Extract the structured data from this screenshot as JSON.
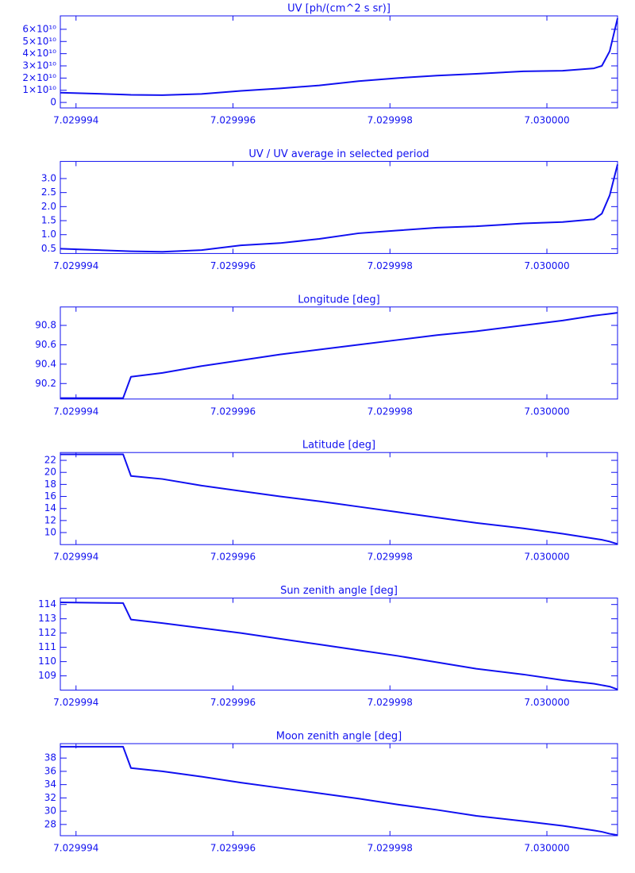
{
  "chart_data": [
    {
      "type": "line",
      "title": "UV [ph/(cm^2 s sr)]",
      "color": "#1010f0",
      "x": [
        7.0299938,
        7.0299946,
        7.0299947,
        7.0299951,
        7.0299956,
        7.0299961,
        7.0299966,
        7.0299971,
        7.0299976,
        7.0299981,
        7.0299986,
        7.0299991,
        7.0299997,
        7.0300002,
        7.0300006,
        7.0300007,
        7.0300008,
        7.0300009
      ],
      "values": [
        8000000000,
        6500000000,
        6200000000,
        6000000000,
        7000000000,
        9500000000,
        11500000000,
        14000000000,
        17500000000,
        20000000000,
        22000000000,
        23500000000,
        25500000000,
        26000000000,
        28000000000,
        30000000000,
        42000000000,
        69000000000
      ],
      "xlim": [
        7.0299938,
        7.0300009
      ],
      "xticks": [
        7.029994,
        7.029996,
        7.029998,
        {
          "value": 7.03,
          "label": "7.030000"
        }
      ],
      "ylim": [
        -4500000000,
        71000000000
      ],
      "yticks": [
        0,
        {
          "value": 10000000000,
          "label": "1×10¹⁰"
        },
        {
          "value": 20000000000,
          "label": "2×10¹⁰"
        },
        {
          "value": 30000000000,
          "label": "3×10¹⁰"
        },
        {
          "value": 40000000000,
          "label": "4×10¹⁰"
        },
        {
          "value": 50000000000,
          "label": "5×10¹⁰"
        },
        {
          "value": 60000000000,
          "label": "6×10¹⁰"
        }
      ]
    },
    {
      "type": "line",
      "title": "UV / UV average in selected period",
      "color": "#1010f0",
      "x": [
        7.0299938,
        7.0299946,
        7.0299947,
        7.0299951,
        7.0299956,
        7.0299961,
        7.0299966,
        7.0299971,
        7.0299976,
        7.0299981,
        7.0299986,
        7.0299991,
        7.0299997,
        7.0300002,
        7.0300006,
        7.0300007,
        7.0300008,
        7.0300009
      ],
      "values": [
        0.5,
        0.42,
        0.41,
        0.39,
        0.45,
        0.62,
        0.7,
        0.85,
        1.05,
        1.15,
        1.25,
        1.3,
        1.4,
        1.45,
        1.55,
        1.75,
        2.4,
        3.5
      ],
      "xlim": [
        7.0299938,
        7.0300009
      ],
      "xticks": [
        7.029994,
        7.029996,
        7.029998,
        {
          "value": 7.03,
          "label": "7.030000"
        }
      ],
      "ylim": [
        0.33,
        3.61
      ],
      "yticks": [
        0.5,
        {
          "value": 1,
          "label": "1.0"
        },
        1.5,
        {
          "value": 2,
          "label": "2.0"
        },
        2.5,
        {
          "value": 3,
          "label": "3.0"
        }
      ]
    },
    {
      "type": "line",
      "title": "Longitude [deg]",
      "color": "#1010f0",
      "x": [
        7.0299938,
        7.0299946,
        7.0299947,
        7.0299951,
        7.0299956,
        7.0299961,
        7.0299966,
        7.0299971,
        7.0299976,
        7.0299981,
        7.0299986,
        7.0299991,
        7.0299997,
        7.0300002,
        7.0300006,
        7.0300007,
        7.0300008,
        7.0300009
      ],
      "values": [
        90.05,
        90.05,
        90.27,
        90.31,
        90.38,
        90.44,
        90.5,
        90.55,
        90.6,
        90.65,
        90.7,
        90.74,
        90.8,
        90.85,
        90.9,
        90.91,
        90.92,
        90.93
      ],
      "xlim": [
        7.0299938,
        7.0300009
      ],
      "xticks": [
        7.029994,
        7.029996,
        7.029998,
        {
          "value": 7.03,
          "label": "7.030000"
        }
      ],
      "ylim": [
        90.04,
        90.99
      ],
      "yticks": [
        90.2,
        90.4,
        90.6,
        90.8
      ]
    },
    {
      "type": "line",
      "title": "Latitude [deg]",
      "color": "#1010f0",
      "x": [
        7.0299938,
        7.0299946,
        7.0299947,
        7.0299951,
        7.0299956,
        7.0299961,
        7.0299966,
        7.0299971,
        7.0299976,
        7.0299981,
        7.0299986,
        7.0299991,
        7.0299997,
        7.0300002,
        7.0300006,
        7.0300007,
        7.0300008,
        7.0300009
      ],
      "values": [
        23,
        23,
        19.4,
        18.9,
        17.8,
        16.9,
        16,
        15.2,
        14.3,
        13.4,
        12.5,
        11.6,
        10.7,
        9.8,
        9,
        8.8,
        8.5,
        8.1
      ],
      "xlim": [
        7.0299938,
        7.0300009
      ],
      "xticks": [
        7.029994,
        7.029996,
        7.029998,
        {
          "value": 7.03,
          "label": "7.030000"
        }
      ],
      "ylim": [
        8,
        23.3
      ],
      "yticks": [
        10,
        12,
        14,
        16,
        18,
        20,
        22
      ]
    },
    {
      "type": "line",
      "title": "Sun zenith angle [deg]",
      "color": "#1010f0",
      "x": [
        7.0299938,
        7.0299946,
        7.0299947,
        7.0299951,
        7.0299956,
        7.0299961,
        7.0299966,
        7.0299971,
        7.0299976,
        7.0299981,
        7.0299986,
        7.0299991,
        7.0299997,
        7.0300002,
        7.0300006,
        7.0300007,
        7.0300008,
        7.0300009
      ],
      "values": [
        114.15,
        114.1,
        112.95,
        112.7,
        112.35,
        112,
        111.6,
        111.2,
        110.8,
        110.4,
        109.95,
        109.5,
        109.1,
        108.7,
        108.45,
        108.35,
        108.25,
        108.05
      ],
      "xlim": [
        7.0299938,
        7.0300009
      ],
      "xticks": [
        7.029994,
        7.029996,
        7.029998,
        {
          "value": 7.03,
          "label": "7.030000"
        }
      ],
      "ylim": [
        108,
        114.45
      ],
      "yticks": [
        109,
        110,
        111,
        112,
        113,
        114
      ]
    },
    {
      "type": "line",
      "title": "Moon zenith angle [deg]",
      "color": "#1010f0",
      "x": [
        7.0299938,
        7.0299946,
        7.0299947,
        7.0299951,
        7.0299956,
        7.0299961,
        7.0299966,
        7.0299971,
        7.0299976,
        7.0299981,
        7.0299986,
        7.0299991,
        7.0299997,
        7.0300002,
        7.0300006,
        7.0300007,
        7.0300008,
        7.0300009
      ],
      "values": [
        39.7,
        39.7,
        36.5,
        36,
        35.2,
        34.3,
        33.5,
        32.7,
        31.9,
        31,
        30.2,
        29.3,
        28.5,
        27.8,
        27.1,
        26.9,
        26.6,
        26.4
      ],
      "xlim": [
        7.0299938,
        7.0300009
      ],
      "xticks": [
        7.029994,
        7.029996,
        7.029998,
        {
          "value": 7.03,
          "label": "7.030000"
        }
      ],
      "ylim": [
        26.31,
        40.17
      ],
      "yticks": [
        28,
        30,
        32,
        34,
        36,
        38
      ]
    }
  ]
}
